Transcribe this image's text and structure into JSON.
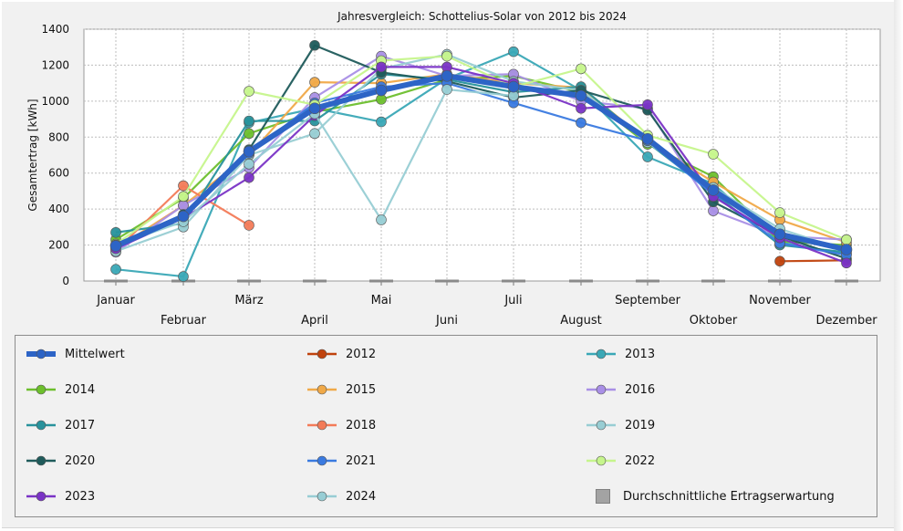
{
  "chart_data": {
    "type": "line",
    "title": "Jahresvergleich: Schottelius-Solar von 2012 bis 2024",
    "ylabel": "Gesamtertrag [kWh]",
    "xlabel": "",
    "ylim": [
      0,
      1400
    ],
    "yticks": [
      0,
      200,
      400,
      600,
      800,
      1000,
      1200,
      1400
    ],
    "categories": [
      "Januar",
      "Februar",
      "März",
      "April",
      "Mai",
      "Juni",
      "Juli",
      "August",
      "September",
      "Oktober",
      "November",
      "Dezember"
    ],
    "grid": true,
    "legend_position": "bottom",
    "series": [
      {
        "name": "2012",
        "color": "#c0420d",
        "values": [
          null,
          null,
          null,
          null,
          null,
          null,
          null,
          null,
          null,
          null,
          110,
          115
        ]
      },
      {
        "name": "2013",
        "color": "#3aa8b6",
        "values": [
          65,
          25,
          880,
          960,
          885,
          1125,
          1275,
          1060,
          690,
          540,
          215,
          150
        ]
      },
      {
        "name": "2014",
        "color": "#6dbf2d",
        "values": [
          230,
          460,
          820,
          940,
          1010,
          1120,
          1140,
          1050,
          760,
          580,
          220,
          200
        ]
      },
      {
        "name": "2015",
        "color": "#f0a948",
        "values": [
          180,
          420,
          700,
          1105,
          1100,
          1150,
          1100,
          1075,
          780,
          550,
          340,
          215
        ]
      },
      {
        "name": "2016",
        "color": "#a98fe6",
        "values": [
          160,
          420,
          630,
          1020,
          1250,
          1140,
          1150,
          1000,
          960,
          390,
          250,
          230
        ]
      },
      {
        "name": "2017",
        "color": "#28929c",
        "values": [
          270,
          320,
          890,
          890,
          1150,
          1120,
          1050,
          1080,
          770,
          490,
          200,
          160
        ]
      },
      {
        "name": "2018",
        "color": "#f37b58",
        "values": [
          170,
          530,
          310,
          null,
          null,
          null,
          null,
          null,
          null,
          null,
          null,
          null
        ]
      },
      {
        "name": "2019",
        "color": "#98cdd3",
        "values": [
          165,
          300,
          700,
          820,
          1180,
          1260,
          1110,
          1060,
          770,
          520,
          290,
          170
        ]
      },
      {
        "name": "2020",
        "color": "#1f5b5b",
        "values": [
          190,
          370,
          730,
          1310,
          1160,
          1110,
          1020,
          1060,
          950,
          440,
          250,
          125
        ]
      },
      {
        "name": "2021",
        "color": "#3a7ae0",
        "values": [
          185,
          360,
          710,
          990,
          1080,
          1100,
          990,
          880,
          780,
          480,
          210,
          145
        ]
      },
      {
        "name": "2022",
        "color": "#c6f58c",
        "values": [
          205,
          470,
          1055,
          980,
          1225,
          1250,
          1080,
          1180,
          810,
          705,
          380,
          230
        ]
      },
      {
        "name": "2023",
        "color": "#7a33c6",
        "values": [
          180,
          350,
          575,
          920,
          1190,
          1190,
          1100,
          960,
          980,
          470,
          240,
          100
        ]
      },
      {
        "name": "2024",
        "color": "#97cdd4",
        "values": [
          200,
          330,
          650,
          930,
          340,
          1065,
          1030,
          null,
          null,
          null,
          null,
          null
        ]
      },
      {
        "name": "Mittelwert",
        "color": "#2d64c6",
        "values": [
          195,
          360,
          720,
          960,
          1060,
          1140,
          1080,
          1030,
          790,
          505,
          260,
          175
        ]
      },
      {
        "name": "Durchschnittliche Ertragserwartung",
        "color": "#8a8a8a",
        "values": [
          0,
          0,
          0,
          0,
          0,
          0,
          0,
          0,
          0,
          0,
          0,
          0
        ]
      }
    ]
  },
  "legend": {
    "items": [
      "Mittelwert",
      "2012",
      "2013",
      "2014",
      "2015",
      "2016",
      "2017",
      "2018",
      "2019",
      "2020",
      "2021",
      "2022",
      "2023",
      "2024",
      "Durchschnittliche Ertragserwartung"
    ]
  }
}
